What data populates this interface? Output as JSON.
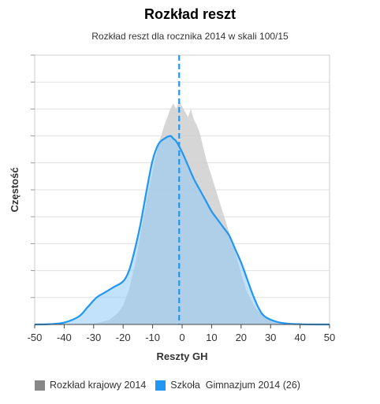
{
  "chart_data": {
    "type": "area",
    "title": "Rozkład reszt",
    "subtitle": "Rozkład reszt dla rocznika 2014 w skali 100/15",
    "xlabel": "Reszty GH",
    "ylabel": "Częstość",
    "xlim": [
      -50,
      50
    ],
    "x_ticks": [
      "-50",
      "-40",
      "-30",
      "-20",
      "-10",
      "0",
      "10",
      "20",
      "30",
      "40",
      "50"
    ],
    "y_ticks_labeled": false,
    "grid": true,
    "reference_line": {
      "x": -1,
      "style": "dashed",
      "color": "#2196f3"
    },
    "legend_position": "bottom",
    "series": [
      {
        "name": "Rozkład krajowy 2014",
        "color": "#888888",
        "fill": "#cfcfcf",
        "x": [
          -50,
          -30,
          -25,
          -22,
          -20,
          -18,
          -16,
          -14,
          -12,
          -10,
          -8,
          -6,
          -5,
          -4,
          -3,
          -2,
          -1,
          0,
          1,
          2,
          3,
          4,
          5,
          6,
          8,
          10,
          12,
          14,
          16,
          18,
          20,
          22,
          25,
          28,
          32,
          50
        ],
        "y": [
          0,
          0.3,
          1.5,
          4,
          7,
          13,
          22,
          34,
          46,
          57,
          67,
          74,
          77,
          80,
          82,
          80,
          83,
          81,
          79,
          77,
          80,
          76,
          74,
          71,
          62,
          55,
          48,
          41,
          34,
          27,
          19,
          12,
          6,
          2.5,
          0.5,
          0
        ]
      },
      {
        "name": "Szkoła  Gimnazjum 2014 (26)",
        "color": "#2196f3",
        "fill": "#bbdefb",
        "x": [
          -50,
          -45,
          -40,
          -35,
          -32,
          -29,
          -26,
          -23,
          -20,
          -18,
          -16,
          -14,
          -12,
          -10,
          -8,
          -6,
          -4,
          -3,
          -2,
          0,
          2,
          4,
          6,
          8,
          10,
          12,
          14,
          16,
          18,
          20,
          22,
          24,
          26,
          28,
          32,
          36,
          40,
          45,
          50
        ],
        "y": [
          0,
          0.1,
          0.7,
          3,
          6.5,
          10,
          12,
          14,
          16,
          20,
          28,
          38,
          50,
          61,
          67,
          69,
          70,
          69,
          68,
          64,
          59,
          54,
          50,
          46,
          42,
          39,
          36,
          33,
          28,
          23,
          17,
          11,
          6,
          3,
          1,
          0.3,
          0.1,
          0,
          0
        ]
      }
    ]
  }
}
